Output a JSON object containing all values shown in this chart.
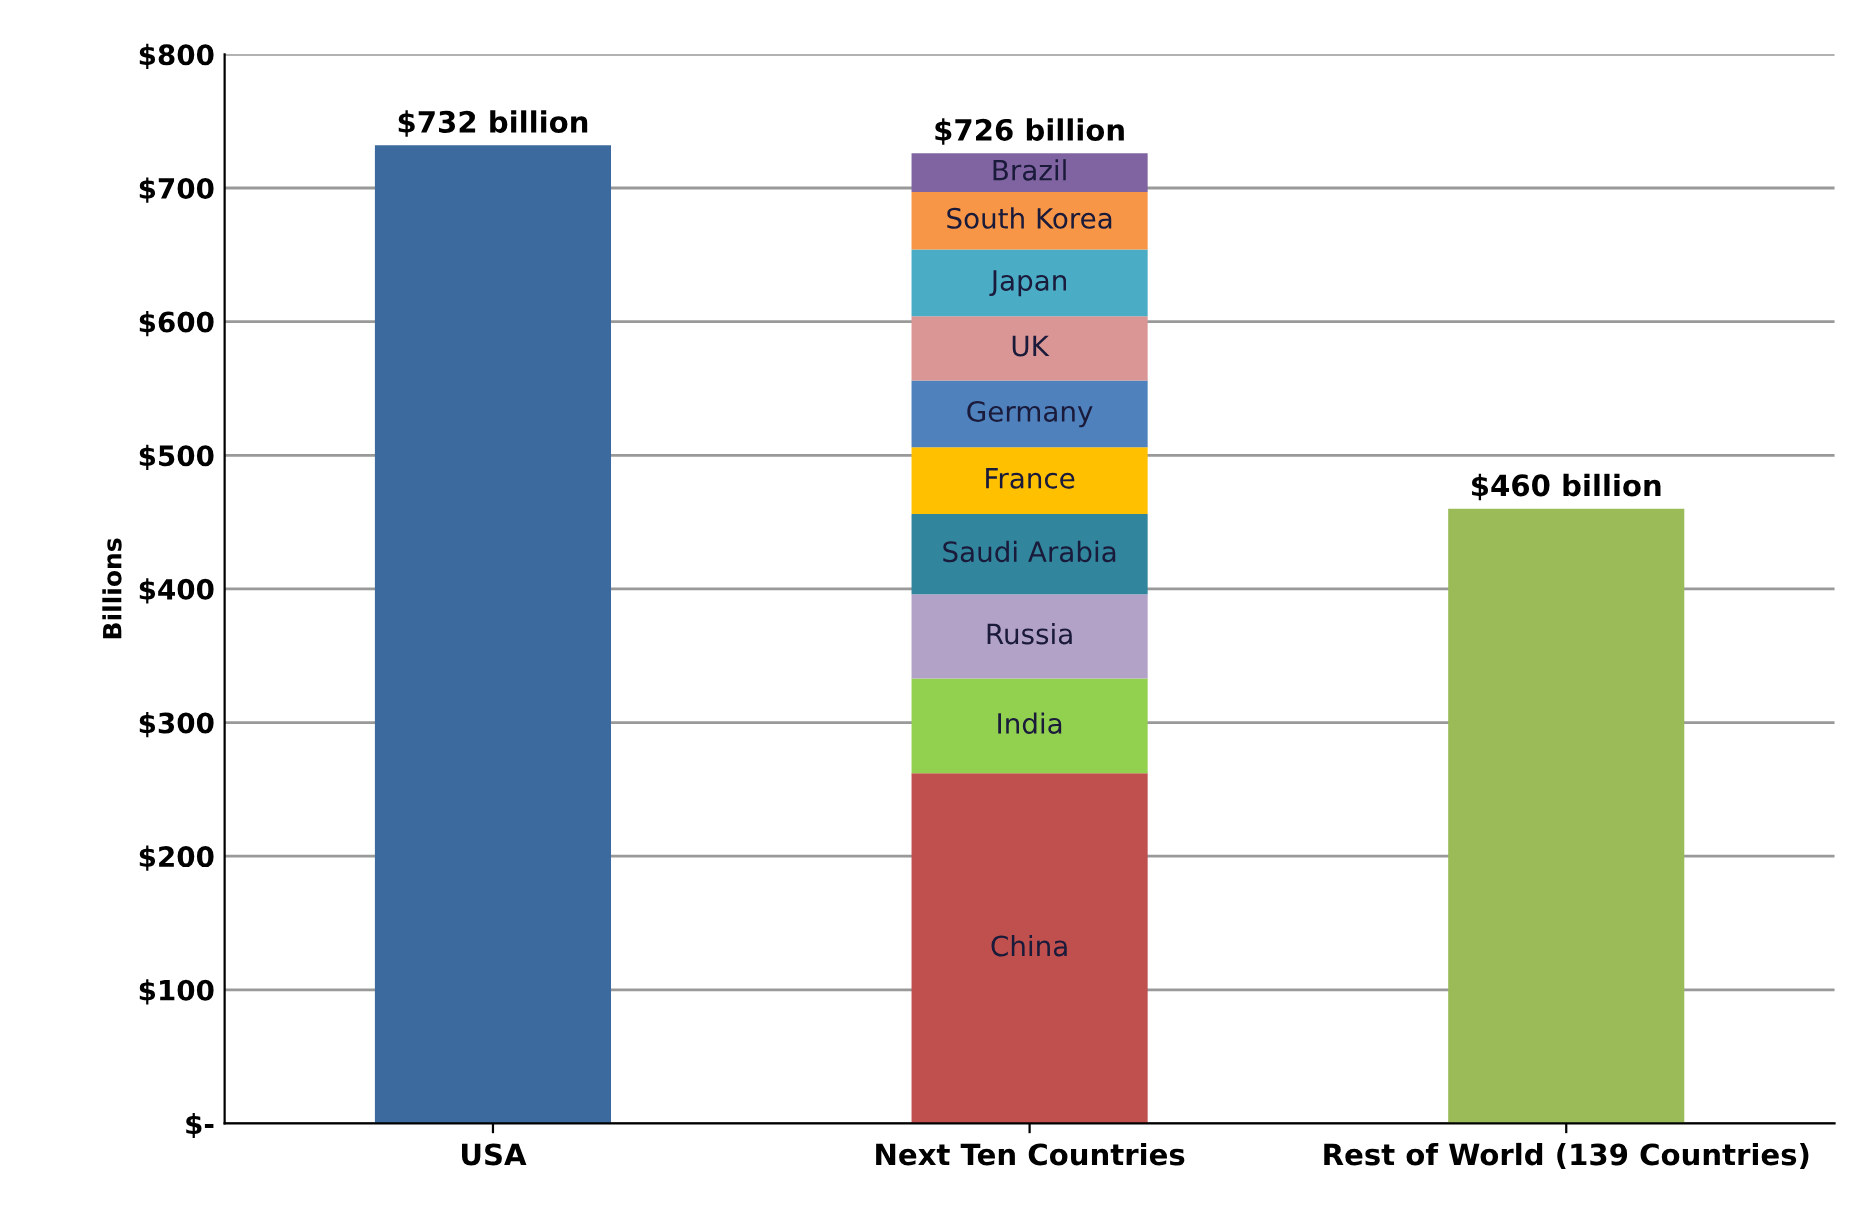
{
  "chart_data": {
    "type": "bar",
    "stacked": true,
    "ylabel": "Billions",
    "categories": [
      "USA",
      "Next Ten Countries",
      "Rest of World (139 Countries)"
    ],
    "series": [
      {
        "colors": [
          "#3d6a9e",
          "#3d6a9e",
          "#9bbb59"
        ],
        "values": [
          732,
          null,
          460
        ]
      },
      {
        "name": "China",
        "color": "#c0504d",
        "values": [
          null,
          262,
          null
        ]
      },
      {
        "name": "India",
        "color": "#92d050",
        "values": [
          null,
          71,
          null
        ]
      },
      {
        "name": "Russia",
        "color": "#b3a2c7",
        "values": [
          null,
          63,
          null
        ]
      },
      {
        "name": "Saudi Arabia",
        "color": "#31859c",
        "values": [
          null,
          60,
          null
        ]
      },
      {
        "name": "France",
        "color": "#ffc000",
        "values": [
          null,
          50,
          null
        ]
      },
      {
        "name": "Germany",
        "color": "#4f81bd",
        "values": [
          null,
          50,
          null
        ]
      },
      {
        "name": "UK",
        "color": "#d99694",
        "values": [
          null,
          48,
          null
        ]
      },
      {
        "name": "Japan",
        "color": "#4bacc6",
        "values": [
          null,
          50,
          null
        ]
      },
      {
        "name": "South Korea",
        "color": "#f79646",
        "values": [
          null,
          43,
          null
        ]
      },
      {
        "name": "Brazil",
        "color": "#8064a2",
        "values": [
          null,
          29,
          null
        ]
      }
    ],
    "totals": [
      "$732 billion",
      "$726 billion",
      "$460 billion"
    ],
    "ylim": [
      0,
      800
    ],
    "yticks": [
      {
        "value": 0,
        "label": "$-"
      },
      {
        "value": 100,
        "label": "$100"
      },
      {
        "value": 200,
        "label": "$200"
      },
      {
        "value": 300,
        "label": "$300"
      },
      {
        "value": 400,
        "label": "$400"
      },
      {
        "value": 500,
        "label": "$500"
      },
      {
        "value": 600,
        "label": "$600"
      },
      {
        "value": 700,
        "label": "$700"
      },
      {
        "value": 800,
        "label": "$800"
      }
    ],
    "grid": "y",
    "legend": false
  }
}
